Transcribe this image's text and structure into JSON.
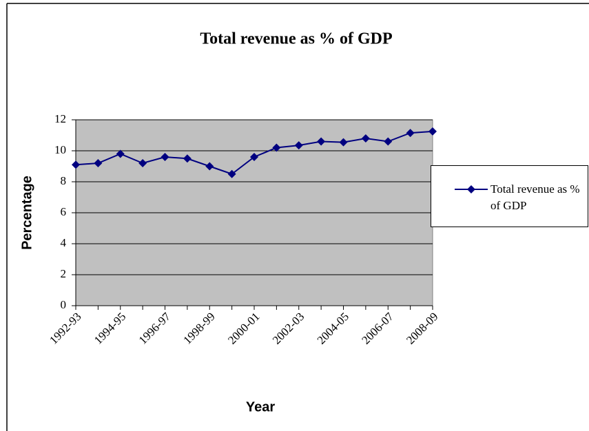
{
  "chart_data": {
    "type": "line",
    "title": "Total revenue as % of GDP",
    "x_label": "Year",
    "y_label": "Percentage",
    "categories": [
      "1992-93",
      null,
      "1994-95",
      null,
      "1996-97",
      null,
      "1998-99",
      null,
      "2000-01",
      null,
      "2002-03",
      null,
      "2004-05",
      null,
      "2006-07",
      null,
      "2008-09"
    ],
    "series": [
      {
        "name": "Total revenue as % of GDP",
        "color": "#000080",
        "values": [
          9.1,
          9.2,
          9.8,
          9.2,
          9.6,
          9.5,
          9.0,
          8.5,
          9.6,
          10.2,
          10.35,
          10.6,
          10.55,
          10.8,
          10.6,
          11.15,
          11.25
        ]
      }
    ],
    "ylim": [
      0,
      12
    ],
    "yticks": [
      0,
      2,
      4,
      6,
      8,
      10,
      12
    ],
    "grid": true,
    "legend": "right"
  }
}
